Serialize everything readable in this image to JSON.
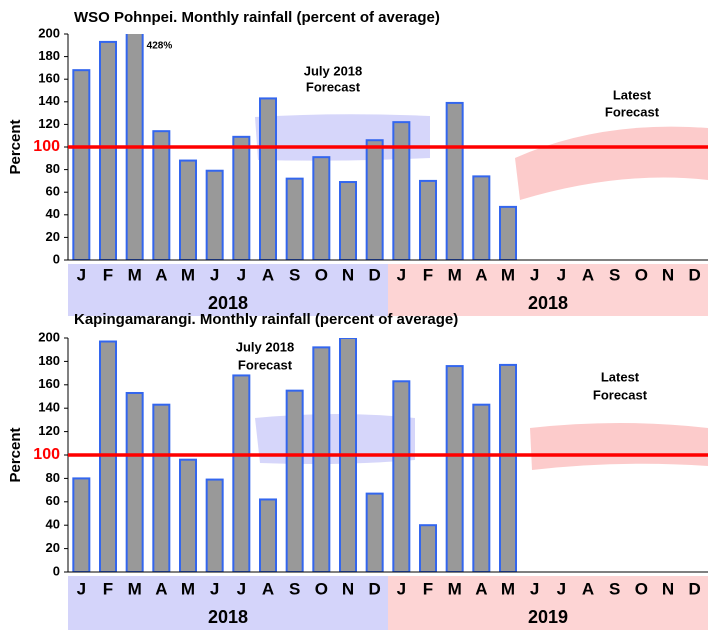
{
  "chart_data": [
    {
      "type": "bar",
      "title": "WSO Pohnpei.  Monthly rainfall (percent of average)",
      "y_label": "Percent",
      "categories": [
        "J",
        "F",
        "M",
        "A",
        "M",
        "J",
        "J",
        "A",
        "S",
        "O",
        "N",
        "D",
        "J",
        "F",
        "M",
        "A",
        "M",
        "J",
        "J",
        "A",
        "S",
        "O",
        "N",
        "D"
      ],
      "values": [
        168,
        193,
        428,
        114,
        88,
        79,
        109,
        143,
        72,
        91,
        69,
        106,
        122,
        70,
        139,
        74,
        47,
        null,
        null,
        null,
        null,
        null,
        null,
        null
      ],
      "value_labels": [
        null,
        null,
        "428%",
        null,
        null,
        null,
        null,
        null,
        null,
        null,
        null,
        null,
        null,
        null,
        null,
        null,
        null,
        null,
        null,
        null,
        null,
        null,
        null,
        null
      ],
      "group_labels": [
        "2018",
        "2018"
      ],
      "ylim": [
        0,
        200
      ],
      "yticks": [
        0,
        20,
        40,
        60,
        80,
        100,
        120,
        140,
        160,
        180,
        200
      ],
      "color": "#999999",
      "edge_color": "#3366ee",
      "reference_line": {
        "value": 100,
        "color": "#ff0000"
      },
      "annotations": [
        [
          "July 2018",
          "Forecast"
        ],
        [
          "Latest",
          "Forecast"
        ]
      ]
    },
    {
      "type": "bar",
      "title": "Kapingamarangi.  Monthly rainfall (percent of average)",
      "y_label": "Percent",
      "categories": [
        "J",
        "F",
        "M",
        "A",
        "M",
        "J",
        "J",
        "A",
        "S",
        "O",
        "N",
        "D",
        "J",
        "F",
        "M",
        "A",
        "M",
        "J",
        "J",
        "A",
        "S",
        "O",
        "N",
        "D"
      ],
      "values": [
        80,
        197,
        153,
        143,
        96,
        79,
        168,
        62,
        155,
        192,
        200,
        67,
        163,
        40,
        176,
        143,
        177,
        null,
        null,
        null,
        null,
        null,
        null,
        null
      ],
      "group_labels": [
        "2018",
        "2019"
      ],
      "ylim": [
        0,
        200
      ],
      "yticks": [
        0,
        20,
        40,
        60,
        80,
        100,
        120,
        140,
        160,
        180,
        200
      ],
      "color": "#999999",
      "edge_color": "#3366ee",
      "reference_line": {
        "value": 100,
        "color": "#ff0000"
      },
      "annotations": [
        [
          "July 2018",
          "Forecast"
        ],
        [
          "Latest",
          "Forecast"
        ]
      ]
    }
  ]
}
